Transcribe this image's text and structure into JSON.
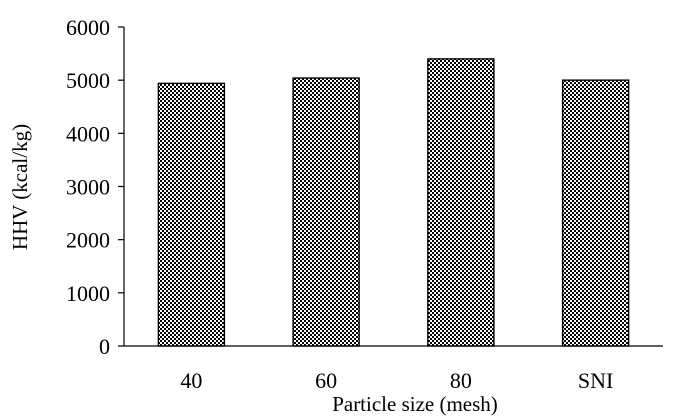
{
  "chart_data": {
    "type": "bar",
    "title": "",
    "xlabel": "Particle size (mesh)",
    "ylabel": "HHV (kcal/kg)",
    "categories": [
      "40",
      "60",
      "80",
      "SNI"
    ],
    "values": [
      4940,
      5040,
      5400,
      5000
    ],
    "ylim": [
      0,
      6000
    ],
    "yticks": [
      0,
      1000,
      2000,
      3000,
      4000,
      5000,
      6000
    ],
    "grid": false,
    "legend": "none",
    "bar_fill": "checkerboard",
    "colors": {
      "bar_dark": "#000000",
      "bar_light": "#ffffff",
      "axis": "#000000"
    }
  }
}
